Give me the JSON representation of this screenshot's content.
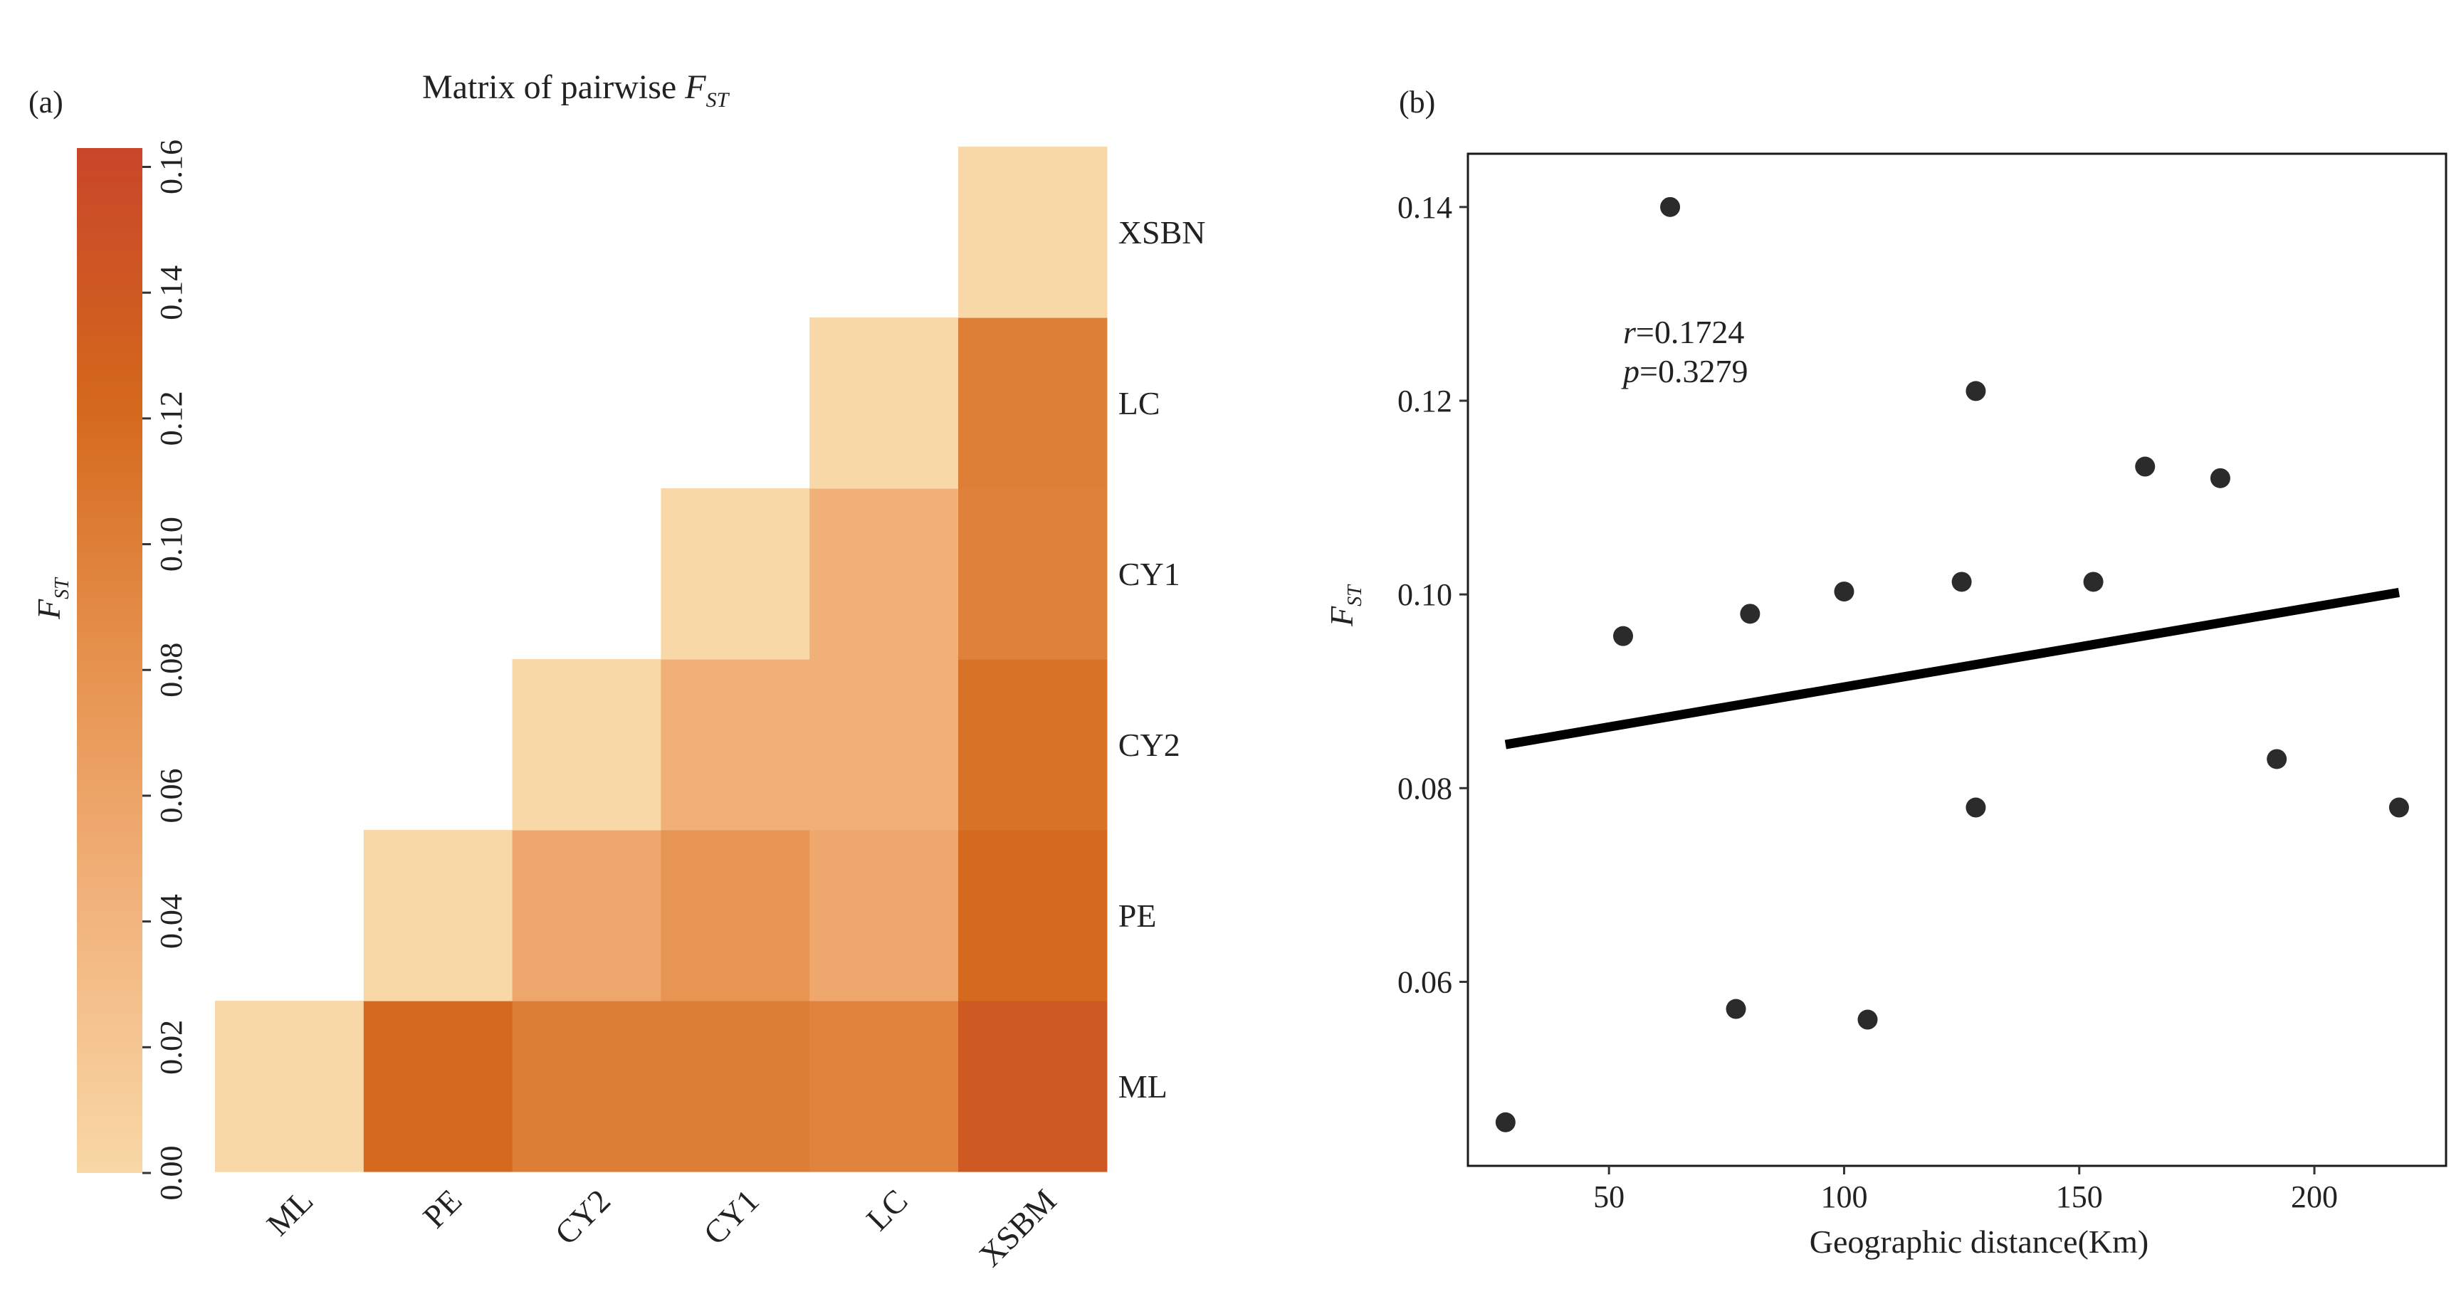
{
  "chart_data": [
    {
      "type": "heatmap",
      "panel_label": "(a)",
      "title_prefix": "Matrix of pairwise ",
      "title_var": "F",
      "title_sub": "ST",
      "x_categories": [
        "ML",
        "PE",
        "CY2",
        "CY1",
        "LC",
        "XSBM"
      ],
      "y_categories": [
        "ML",
        "PE",
        "CY2",
        "CY1",
        "LC",
        "XSBN"
      ],
      "matrix": [
        [
          0.0,
          null,
          null,
          null,
          null,
          null
        ],
        [
          0.121,
          0.0,
          null,
          null,
          null,
          null
        ],
        [
          0.101,
          0.057,
          0.0,
          null,
          null,
          null
        ],
        [
          0.101,
          0.078,
          0.046,
          0.0,
          null,
          null
        ],
        [
          0.095,
          0.056,
          0.046,
          0.046,
          0.0,
          null
        ],
        [
          0.14,
          0.121,
          0.113,
          0.098,
          0.1,
          0.0
        ]
      ],
      "colorbar": {
        "label_var": "F",
        "label_sub": "ST",
        "range": [
          0,
          0.163
        ],
        "ticks": [
          "0.00",
          "0.02",
          "0.04",
          "0.06",
          "0.08",
          "0.10",
          "0.12",
          "0.14",
          "0.16"
        ],
        "tick_values": [
          0,
          0.02,
          0.04,
          0.06,
          0.08,
          0.1,
          0.12,
          0.14,
          0.16
        ],
        "colors": [
          "#F8D8A6",
          "#F2B47E",
          "#E6924E",
          "#D4681C",
          "#C9462A"
        ]
      }
    },
    {
      "type": "scatter",
      "panel_label": "(b)",
      "xlabel": "Geographic distance(Km)",
      "ylabel_var": "F",
      "ylabel_sub": "ST",
      "xlim": [
        20,
        228
      ],
      "ylim": [
        0.041,
        0.1455
      ],
      "xticks": [
        50,
        100,
        150,
        200
      ],
      "xtick_labels": [
        "50",
        "100",
        "150",
        "200"
      ],
      "yticks": [
        0.06,
        0.08,
        0.1,
        0.12,
        0.14
      ],
      "ytick_labels": [
        "0.06",
        "0.08",
        "0.10",
        "0.12",
        "0.14"
      ],
      "points": [
        {
          "x": 28,
          "y": 0.0455
        },
        {
          "x": 53,
          "y": 0.0957
        },
        {
          "x": 63,
          "y": 0.14
        },
        {
          "x": 77,
          "y": 0.0572
        },
        {
          "x": 80,
          "y": 0.098
        },
        {
          "x": 100,
          "y": 0.1003
        },
        {
          "x": 105,
          "y": 0.0561
        },
        {
          "x": 125,
          "y": 0.1013
        },
        {
          "x": 128,
          "y": 0.121
        },
        {
          "x": 128,
          "y": 0.078
        },
        {
          "x": 153,
          "y": 0.1013
        },
        {
          "x": 164,
          "y": 0.1132
        },
        {
          "x": 180,
          "y": 0.112
        },
        {
          "x": 192,
          "y": 0.083
        },
        {
          "x": 218,
          "y": 0.078
        }
      ],
      "fit_line": {
        "x": [
          28,
          218
        ],
        "y": [
          0.0845,
          0.1002
        ]
      },
      "stats": {
        "r_var": "r",
        "r_value": "=0.1724",
        "p_var": "p",
        "p_value": "=0.3279"
      },
      "colors": {
        "point": "#2b2b2b",
        "line": "#000000"
      }
    }
  ]
}
